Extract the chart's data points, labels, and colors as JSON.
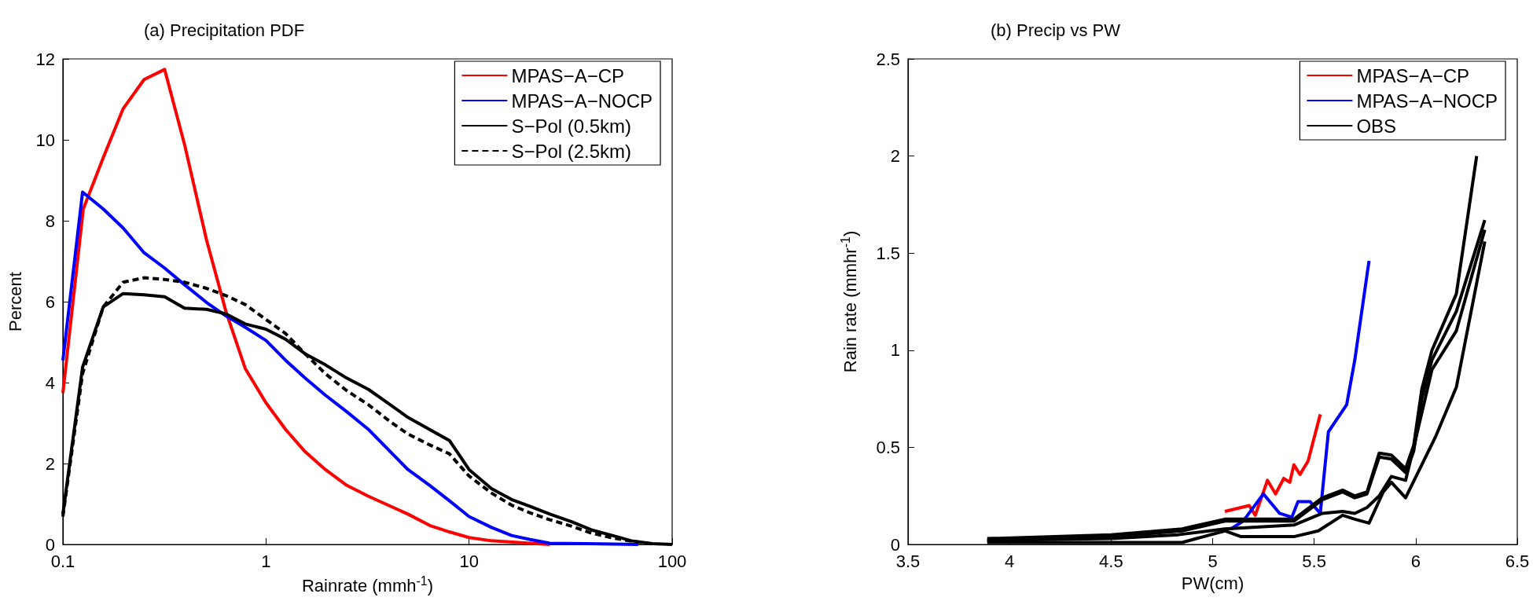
{
  "chart_data": [
    {
      "type": "line",
      "title": "(a) Precipitation PDF",
      "xlabel": "Rainrate (mmh$^{-1}$)",
      "ylabel": "Percent",
      "log": "x",
      "xlim": [
        0.1,
        100
      ],
      "xticks": [
        0.1,
        1,
        10,
        100
      ],
      "ylim": [
        0,
        12
      ],
      "yticks": [
        0,
        2,
        4,
        6,
        8,
        10,
        12
      ],
      "grid": false,
      "legend": "top right",
      "marker": "none",
      "series": [
        {
          "name": "MPAS−A−CP",
          "color": "#ff0000",
          "line_style": "solid",
          "x": [
            0.1,
            0.126,
            0.158,
            0.198,
            0.251,
            0.317,
            0.397,
            0.51,
            0.635,
            0.79,
            1,
            1.25,
            1.56,
            1.96,
            2.5,
            3.2,
            5,
            6.4,
            8,
            10,
            12.9,
            20,
            25
          ],
          "values": [
            3.74,
            8.29,
            9.56,
            10.77,
            11.49,
            11.74,
            9.89,
            7.52,
            5.76,
            4.35,
            3.5,
            2.84,
            2.29,
            1.85,
            1.46,
            1.19,
            0.75,
            0.47,
            0.31,
            0.17,
            0.09,
            0.03,
            0
          ]
        },
        {
          "name": "MPAS−A−NOCP",
          "color": "#0000ff",
          "line_style": "solid",
          "x": [
            0.1,
            0.125,
            0.158,
            0.198,
            0.251,
            0.317,
            0.397,
            0.51,
            0.635,
            0.79,
            1,
            1.25,
            1.56,
            1.96,
            2.5,
            3.2,
            4.1,
            5,
            6.4,
            8,
            10,
            12.9,
            16.2,
            20,
            25,
            68
          ],
          "values": [
            4.55,
            8.71,
            8.29,
            7.82,
            7.21,
            6.83,
            6.42,
            5.98,
            5.65,
            5.37,
            5.04,
            4.55,
            4.11,
            3.69,
            3.28,
            2.84,
            2.29,
            1.85,
            1.46,
            1.08,
            0.69,
            0.42,
            0.22,
            0.12,
            0.03,
            0
          ]
        },
        {
          "name": "S−Pol (0.5km)",
          "color": "#000000",
          "line_style": "solid",
          "x": [
            0.1,
            0.125,
            0.158,
            0.198,
            0.251,
            0.317,
            0.397,
            0.51,
            0.635,
            0.79,
            1,
            1.25,
            1.56,
            1.96,
            2.5,
            3.2,
            4.1,
            5,
            6.4,
            8,
            10,
            12.9,
            16.2,
            20,
            25,
            32,
            40,
            50,
            63,
            80,
            100
          ],
          "values": [
            0.75,
            4.38,
            5.87,
            6.2,
            6.17,
            6.12,
            5.84,
            5.81,
            5.7,
            5.45,
            5.32,
            5.07,
            4.71,
            4.44,
            4.11,
            3.83,
            3.45,
            3.14,
            2.84,
            2.57,
            1.85,
            1.38,
            1.11,
            0.94,
            0.75,
            0.56,
            0.36,
            0.23,
            0.09,
            0.02,
            0
          ]
        },
        {
          "name": "S−Pol (2.5km)",
          "color": "#000000",
          "line_style": "dashed",
          "x": [
            0.1,
            0.125,
            0.158,
            0.198,
            0.251,
            0.317,
            0.397,
            0.51,
            0.635,
            0.79,
            1,
            1.25,
            1.56,
            1.96,
            2.5,
            3.2,
            4.1,
            5,
            6.4,
            8,
            10,
            12.9,
            16.2,
            20,
            25,
            32,
            40,
            50,
            63,
            80
          ],
          "values": [
            0.69,
            4.22,
            5.87,
            6.48,
            6.59,
            6.55,
            6.48,
            6.33,
            6.15,
            5.93,
            5.56,
            5.21,
            4.71,
            4.22,
            3.8,
            3.45,
            3.03,
            2.73,
            2.46,
            2.24,
            1.69,
            1.27,
            0.97,
            0.78,
            0.61,
            0.45,
            0.28,
            0.17,
            0.08,
            0.01
          ]
        }
      ]
    },
    {
      "type": "line",
      "title": "(b) Precip vs PW",
      "xlabel": "PW(cm)",
      "ylabel": "Rain rate (mmhr$^{-1}$)",
      "xlim": [
        3.5,
        6.5
      ],
      "xticks": [
        3.5,
        4,
        4.5,
        5,
        5.5,
        6,
        6.5
      ],
      "ylim": [
        0,
        2.5
      ],
      "yticks": [
        0,
        0.5,
        1,
        1.5,
        2,
        2.5
      ],
      "grid": false,
      "legend": "top right",
      "marker": "none",
      "series": [
        {
          "name": "MPAS−A−CP",
          "color": "#ff0000",
          "x": [
            5.06,
            5.18,
            5.21,
            5.27,
            5.31,
            5.35,
            5.38,
            5.4,
            5.43,
            5.47,
            5.53
          ],
          "values": [
            0.17,
            0.2,
            0.15,
            0.33,
            0.26,
            0.34,
            0.32,
            0.41,
            0.36,
            0.43,
            0.67
          ]
        },
        {
          "name": "MPAS−A−NOCP",
          "color": "#0000ff",
          "x": [
            5.09,
            5.15,
            5.25,
            5.33,
            5.39,
            5.42,
            5.48,
            5.53,
            5.57,
            5.66,
            5.7,
            5.77
          ],
          "values": [
            0.08,
            0.12,
            0.26,
            0.16,
            0.14,
            0.22,
            0.22,
            0.16,
            0.58,
            0.72,
            0.95,
            1.46
          ]
        },
        {
          "name": "OBS",
          "color": "#000000",
          "x": [
            3.89,
            4.5,
            4.85,
            5.06,
            5.4,
            5.54,
            5.64,
            5.7,
            5.76,
            5.82,
            5.88,
            5.95,
            5.99,
            6.03,
            6.08,
            6.2,
            6.3
          ],
          "values": [
            0.03,
            0.05,
            0.08,
            0.13,
            0.13,
            0.24,
            0.28,
            0.25,
            0.27,
            0.47,
            0.46,
            0.39,
            0.51,
            0.8,
            1,
            1.29,
            2
          ]
        },
        {
          "color": "#000000",
          "x": [
            3.89,
            4.5,
            4.85,
            5.06,
            5.4,
            5.54,
            5.64,
            5.7,
            5.76,
            5.82,
            5.88,
            5.95,
            5.99,
            6.03,
            6.08,
            6.2,
            6.34
          ],
          "values": [
            0.02,
            0.04,
            0.07,
            0.12,
            0.12,
            0.23,
            0.27,
            0.24,
            0.26,
            0.45,
            0.44,
            0.37,
            0.48,
            0.75,
            0.95,
            1.2,
            1.67
          ]
        },
        {
          "color": "#000000",
          "x": [
            3.89,
            4.5,
            4.83,
            5.06,
            5.4,
            5.54,
            5.64,
            5.7,
            5.76,
            5.82,
            5.88,
            5.95,
            5.99,
            6.08,
            6.2,
            6.34
          ],
          "values": [
            0.02,
            0.03,
            0.05,
            0.08,
            0.1,
            0.16,
            0.17,
            0.16,
            0.19,
            0.25,
            0.35,
            0.33,
            0.5,
            0.9,
            1.1,
            1.62
          ]
        },
        {
          "color": "#000000",
          "x": [
            3.89,
            4.4,
            4.85,
            5.06,
            5.14,
            5.4,
            5.52,
            5.64,
            5.7,
            5.77,
            5.84,
            5.88,
            5.95,
            6.1,
            6.2,
            6.34
          ],
          "values": [
            0.01,
            0.01,
            0.01,
            0.07,
            0.04,
            0.04,
            0.07,
            0.15,
            0.13,
            0.11,
            0.27,
            0.32,
            0.24,
            0.56,
            0.81,
            1.56
          ]
        }
      ]
    }
  ]
}
